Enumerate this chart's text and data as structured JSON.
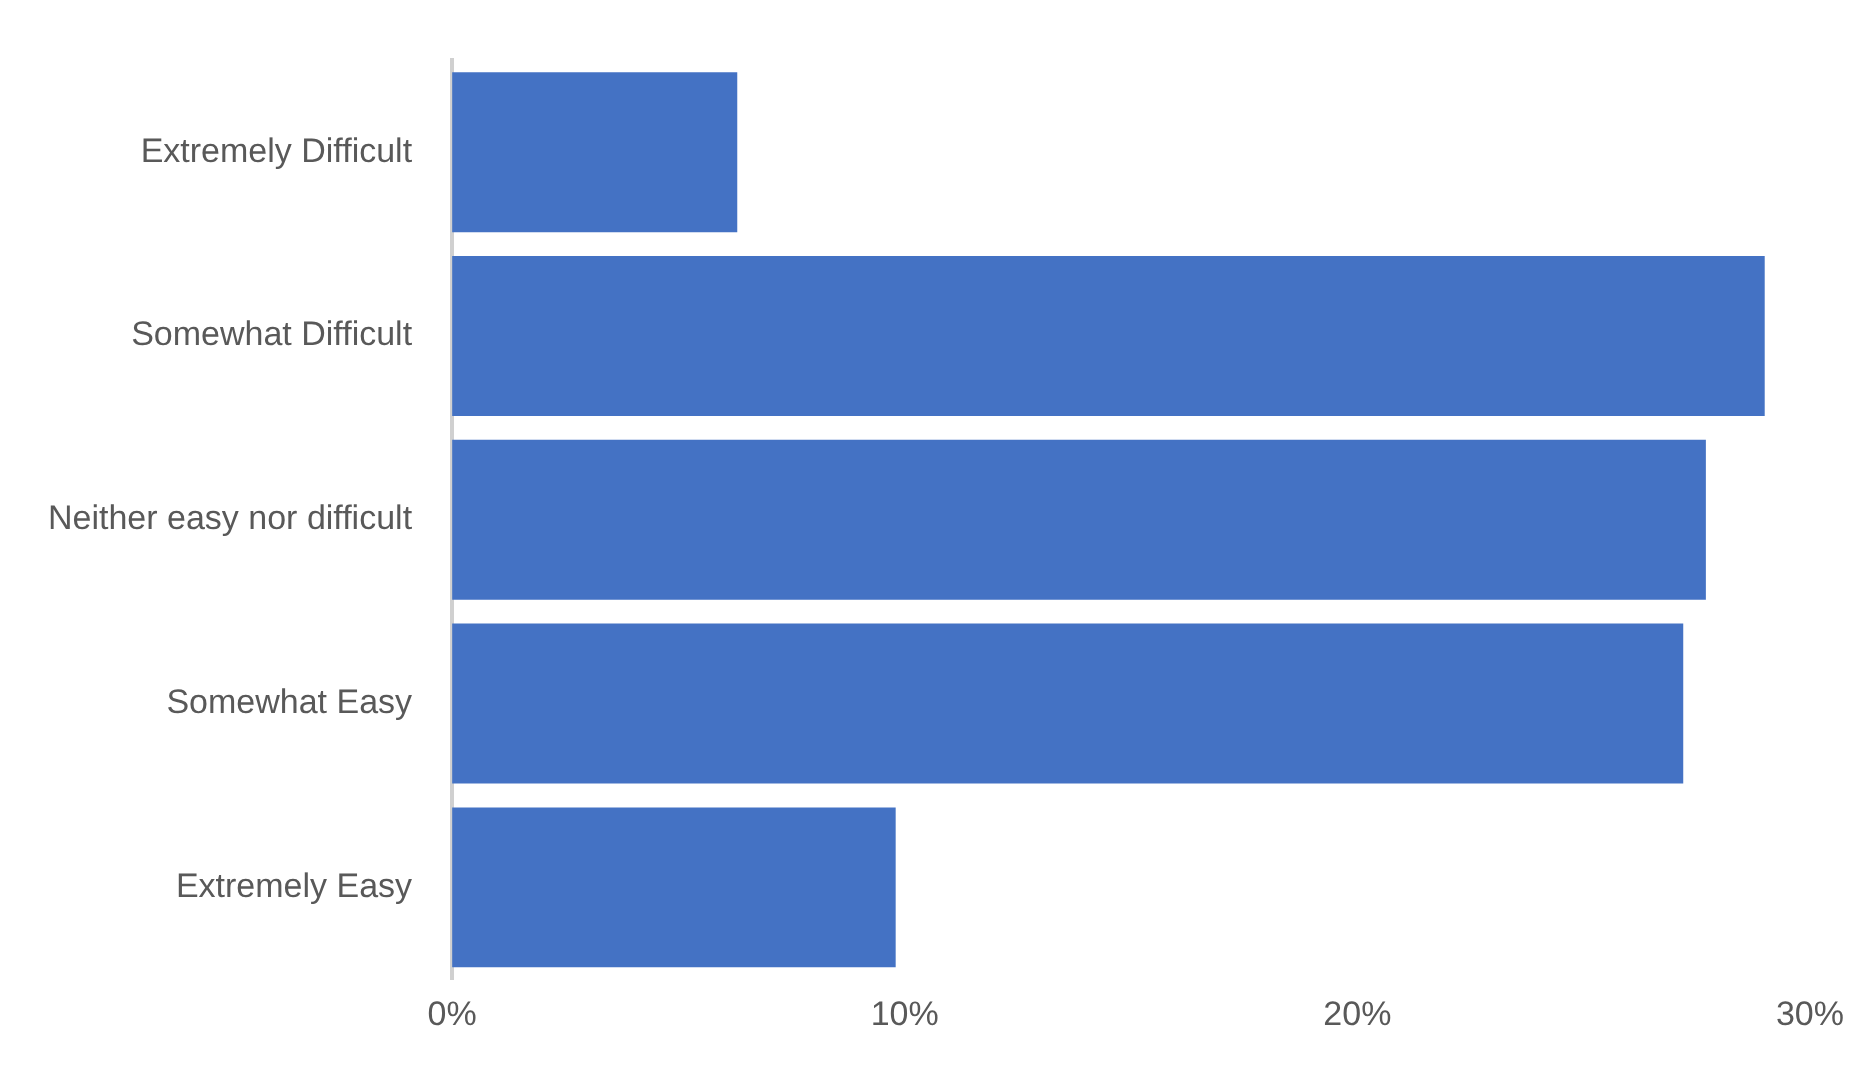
{
  "chart_data": {
    "type": "bar",
    "orientation": "horizontal",
    "categories": [
      "Extremely Difficult",
      "Somewhat Difficult",
      "Neither easy nor difficult",
      "Somewhat Easy",
      "Extremely Easy"
    ],
    "values": [
      6.3,
      29.0,
      27.7,
      27.2,
      9.8
    ],
    "color": "#4472c4",
    "xlim": [
      0,
      30
    ],
    "xticks": [
      {
        "value": 0,
        "label": "0%"
      },
      {
        "value": 10,
        "label": "10%"
      },
      {
        "value": 20,
        "label": "20%"
      },
      {
        "value": 30,
        "label": "30%"
      }
    ],
    "grid": false,
    "legend": false
  }
}
